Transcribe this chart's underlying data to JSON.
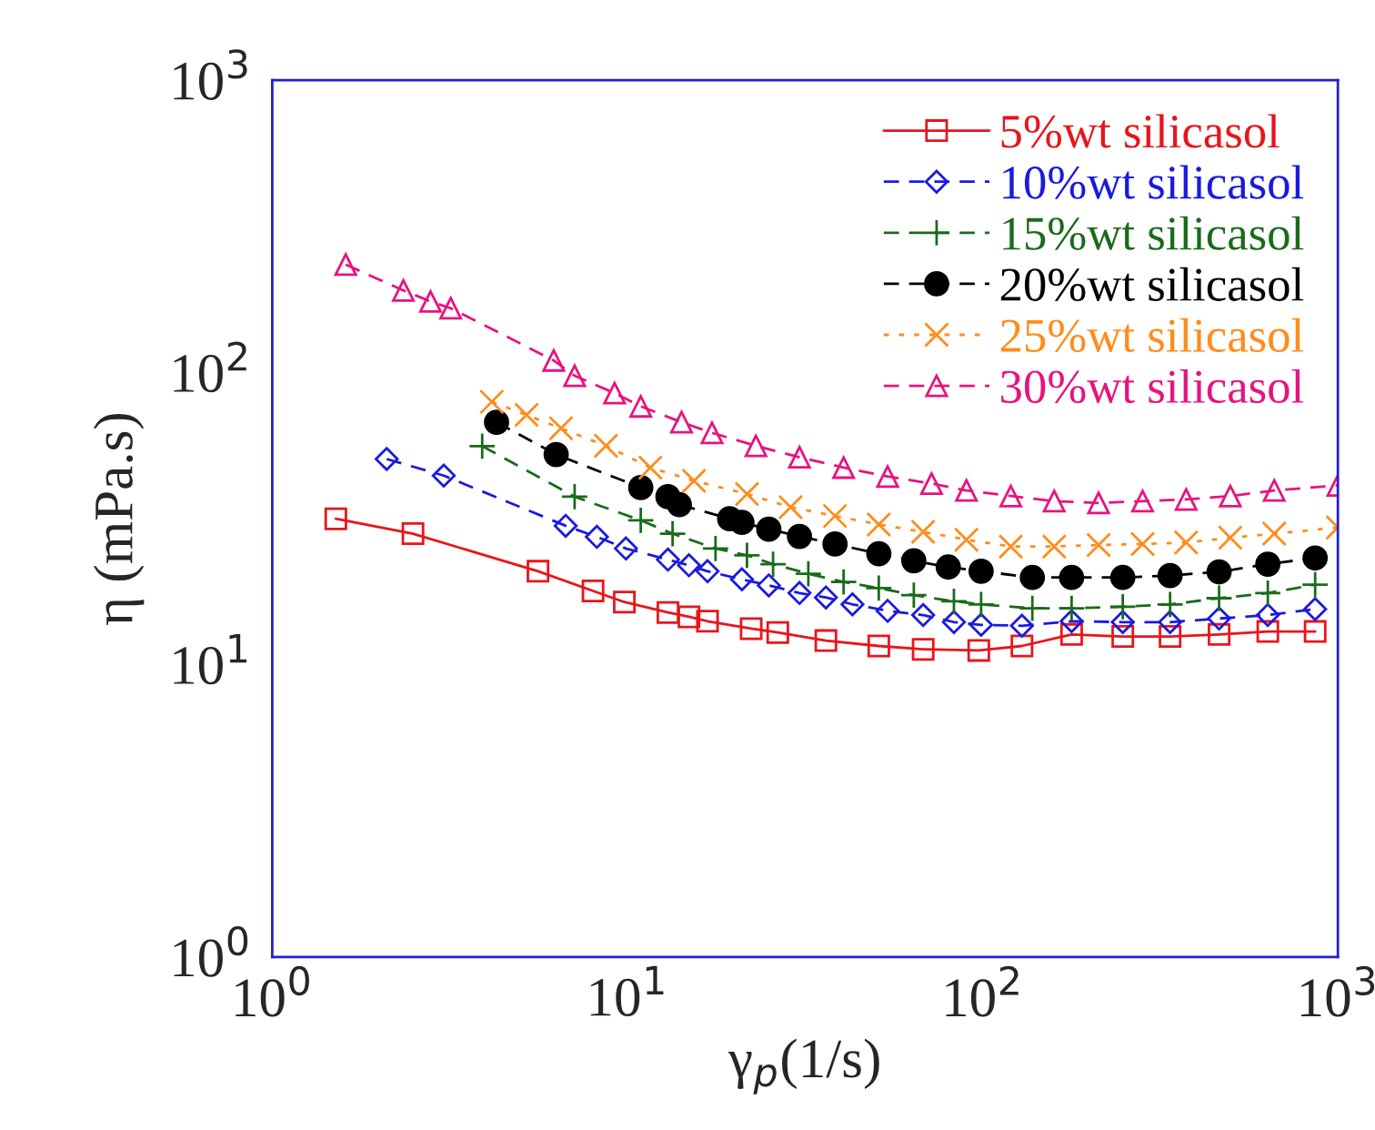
{
  "chart_data": {
    "type": "line",
    "xlabel": "γ$_{p}$(1/s)",
    "ylabel": "η (mPa.s)",
    "log": "xy",
    "xlim": [
      1,
      1000
    ],
    "ylim": [
      1,
      1000
    ],
    "xticks": [
      {
        "value": 1,
        "label": "10$^{0}$"
      },
      {
        "value": 10,
        "label": "10$^{1}$"
      },
      {
        "value": 100,
        "label": "10$^{2}$"
      },
      {
        "value": 1000,
        "label": "10$^{3}$"
      }
    ],
    "yticks": [
      {
        "value": 1,
        "label": "10$^{0}$"
      },
      {
        "value": 10,
        "label": "10$^{1}$"
      },
      {
        "value": 100,
        "label": "10$^{2}$"
      },
      {
        "value": 1000,
        "label": "10$^{3}$"
      }
    ],
    "grid": false,
    "legend": "top right",
    "series": [
      {
        "name": "5%wt silicasol",
        "color": "#e8151b",
        "marker": "square",
        "line_style": "solid",
        "x": [
          1.51,
          2.49,
          5.6,
          8.0,
          9.8,
          13.0,
          14.9,
          16.8,
          22.3,
          26.5,
          36.2,
          51,
          68,
          97.5,
          129,
          178,
          248,
          337,
          463,
          635,
          863
        ],
        "values": [
          31.6,
          28.1,
          20.9,
          17.9,
          16.4,
          15.1,
          14.6,
          14.1,
          13.3,
          12.9,
          12.1,
          11.6,
          11.3,
          11.2,
          11.6,
          12.7,
          12.5,
          12.5,
          12.7,
          13.0,
          13.0
        ]
      },
      {
        "name": "10%wt silicasol",
        "color": "#1a1adf",
        "marker": "diamond",
        "line_style": "dashed",
        "x": [
          2.1,
          3.04,
          6.7,
          8.2,
          9.9,
          13.0,
          14.9,
          16.8,
          21.0,
          25,
          30.5,
          36.2,
          43,
          54,
          68,
          83,
          99,
          129,
          178,
          248,
          337,
          463,
          635,
          863
        ],
        "values": [
          50.6,
          44.4,
          29.9,
          27.4,
          25.0,
          22.9,
          21.9,
          20.9,
          19.6,
          18.7,
          17.6,
          17.0,
          16.1,
          15.3,
          14.8,
          14.0,
          13.7,
          13.6,
          14.1,
          14.0,
          14.0,
          14.4,
          14.8,
          15.5
        ]
      },
      {
        "name": "15%wt silicasol",
        "color": "#1a6b1a",
        "marker": "plus",
        "line_style": "dashed",
        "x": [
          3.9,
          7.1,
          10.9,
          13.4,
          17.7,
          21.7,
          25.7,
          32.3,
          40.6,
          51,
          64,
          83,
          99,
          138,
          178,
          248,
          337,
          463,
          635,
          863
        ],
        "values": [
          56,
          37.6,
          31.2,
          28.1,
          25.0,
          23.7,
          22.1,
          20.5,
          19.2,
          18.3,
          17.3,
          16.5,
          16.1,
          15.6,
          15.6,
          15.8,
          16.1,
          16.9,
          17.6,
          18.8
        ]
      },
      {
        "name": "20%wt silicasol",
        "color": "#000000",
        "marker": "circle",
        "line_style": "dashed",
        "x": [
          4.28,
          6.3,
          10.9,
          13.0,
          14.0,
          19.4,
          21,
          25,
          30.5,
          38.4,
          51,
          64,
          80,
          99,
          138,
          178,
          248,
          337,
          463,
          635,
          863
        ],
        "values": [
          67.6,
          52.4,
          40.4,
          37.6,
          35.3,
          31.6,
          30.7,
          29.1,
          27.5,
          25.9,
          24.0,
          22.7,
          21.6,
          20.9,
          19.9,
          19.9,
          19.9,
          20.2,
          20.8,
          22.1,
          23.2
        ]
      },
      {
        "name": "25%wt silicasol",
        "color": "#ff8c1a",
        "marker": "cross",
        "line_style": "dotted",
        "x": [
          4.15,
          5.2,
          6.5,
          8.7,
          11.6,
          15.4,
          21.7,
          28.8,
          38.4,
          51,
          68,
          90,
          120,
          159,
          212,
          282,
          374,
          498,
          662,
          1000
        ],
        "values": [
          79.4,
          71.6,
          64.4,
          56.1,
          47.3,
          42.6,
          38.4,
          34.6,
          32.3,
          30.2,
          28.5,
          26.8,
          25.4,
          25.4,
          25.7,
          25.9,
          26.2,
          27.2,
          28.1,
          29.5
        ]
      },
      {
        "name": "30%wt silicasol",
        "color": "#e6147f",
        "marker": "triangle",
        "line_style": "dashed",
        "x": [
          1.61,
          2.34,
          2.79,
          3.18,
          6.2,
          7.1,
          9.2,
          10.9,
          14.2,
          17.3,
          23,
          30.5,
          40.6,
          54,
          71.8,
          90,
          120,
          159,
          212,
          282,
          374,
          498,
          662,
          1000
        ],
        "values": [
          234,
          191,
          175,
          166,
          110,
          97.5,
          85,
          76.6,
          67.6,
          62.2,
          56.1,
          51.3,
          47.3,
          44.1,
          41.7,
          39.5,
          37.8,
          36.3,
          35.8,
          36.3,
          36.8,
          37.8,
          39.5,
          41.1
        ]
      }
    ]
  }
}
